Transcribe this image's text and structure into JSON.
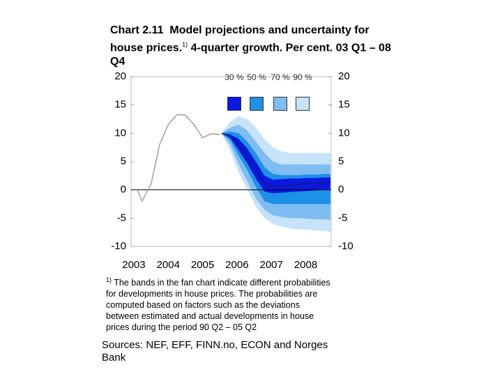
{
  "chart_data": {
    "type": "fan",
    "chart_label": "Chart 2.11",
    "title": "Model projections and uncertainty for house prices.",
    "title_note": "1)",
    "subtitle": "4-quarter growth. Per cent. 03 Q1 – 08 Q4",
    "xlim": [
      2002.92,
      2008.74
    ],
    "xticks": [
      2003,
      2004,
      2005,
      2006,
      2007,
      2008
    ],
    "ylim": [
      -10,
      20
    ],
    "yticks": [
      -10,
      -5,
      0,
      5,
      10,
      15,
      20
    ],
    "y2lim": [
      -10,
      20
    ],
    "y2ticks": [
      -10,
      -5,
      0,
      5,
      10,
      15,
      20
    ],
    "x_history": [
      2003.1,
      2003.24,
      2003.5,
      2003.75,
      2004.0,
      2004.25,
      2004.5,
      2004.75,
      2005.0,
      2005.25,
      2005.5
    ],
    "history": {
      "color": "#a0a0a0",
      "values": [
        0,
        -2,
        1,
        8,
        11.5,
        13.3,
        13.2,
        11.5,
        9.2,
        9.9,
        9.8
      ]
    },
    "x_projection": [
      2005.55,
      2005.8,
      2006.05,
      2006.3,
      2006.55,
      2006.8,
      2007.05,
      2007.3,
      2007.55,
      2007.8,
      2008.05,
      2008.3,
      2008.55,
      2008.72
    ],
    "projection": {
      "color": "#1a1a66",
      "values": [
        10,
        9.5,
        8,
        6,
        3.5,
        1.2,
        0.5,
        0.6,
        0.8,
        1.0,
        1.1,
        1.2,
        1.3,
        1.4
      ]
    },
    "series": [
      {
        "name": "90 %",
        "color": "#c6e3fa",
        "upper": [
          10,
          12,
          13,
          12.5,
          11,
          9,
          7.5,
          6.8,
          6.5,
          6.5,
          6.5,
          6.5,
          6.5,
          6.5
        ],
        "lower": [
          10,
          7,
          3,
          0,
          -3,
          -5,
          -6,
          -6.5,
          -6.8,
          -7,
          -7,
          -7.2,
          -7.3,
          -7.4
        ]
      },
      {
        "name": "70 %",
        "color": "#7fbcf2",
        "upper": [
          10,
          11,
          11.5,
          10.5,
          8.5,
          6.5,
          5,
          4.5,
          4.5,
          4.5,
          4.5,
          4.5,
          4.5,
          4.5
        ],
        "lower": [
          10,
          8,
          4.5,
          1.5,
          -1.5,
          -3.5,
          -4.5,
          -4.8,
          -5,
          -5,
          -5.1,
          -5.2,
          -5.2,
          -5.3
        ]
      },
      {
        "name": "50 %",
        "color": "#1e90e6",
        "upper": [
          10,
          10.3,
          10,
          8.5,
          6.5,
          4,
          2.8,
          2.6,
          2.6,
          2.6,
          2.7,
          2.7,
          2.8,
          2.8
        ],
        "lower": [
          10,
          8.8,
          6,
          3.5,
          0.5,
          -2,
          -2.5,
          -2.5,
          -2.5,
          -2.5,
          -2.5,
          -2.5,
          -2.5,
          -2.5
        ]
      },
      {
        "name": "30 %",
        "color": "#0a18e0",
        "upper": [
          10,
          9.8,
          9,
          7.3,
          5,
          2.5,
          1.8,
          1.9,
          2,
          2,
          2.1,
          2.1,
          2.2,
          2.2
        ],
        "lower": [
          10,
          9.2,
          7,
          4.7,
          2,
          -0.3,
          -0.6,
          -0.5,
          -0.4,
          -0.3,
          -0.2,
          -0.1,
          0,
          0.1
        ]
      }
    ],
    "legend_order": [
      3,
      2,
      1,
      0
    ],
    "footnote_mark": "1)",
    "footnote": "The bands in the fan chart indicate different probabilities for developments in house prices. The probabilities are computed based on factors such as the deviations between estimated and actual developments in house prices during the period 90 Q2 – 05 Q2",
    "source": "Sources: NEF, EFF, FINN.no, ECON and Norges Bank"
  }
}
